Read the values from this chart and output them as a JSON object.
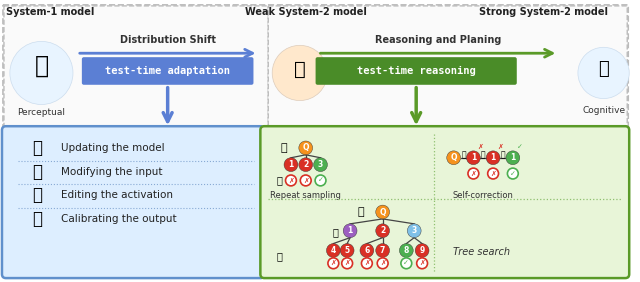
{
  "bg_color": "#ffffff",
  "title_sys1": "System-1 model",
  "title_weak": "Weak System-2 model",
  "title_strong": "Strong System-2 model",
  "label_perceptual": "Perceptual",
  "label_cognitive": "Cognitive",
  "arrow1_label": "Distribution Shift",
  "arrow2_label": "Reasoning and Planing",
  "box1_text": "test-time adaptation",
  "box2_text": "test-time reasoning",
  "box1_color": "#5b7fd4",
  "box2_color": "#4a8c28",
  "arrow1_color": "#5b7fd4",
  "arrow2_color": "#5a9a28",
  "down_arrow1_color": "#5b7fd4",
  "down_arrow2_color": "#5a9a28",
  "left_panel_bg": "#ddeeff",
  "left_panel_border": "#6090cc",
  "right_panel_bg": "#e8f5d8",
  "right_panel_border": "#5a9a28",
  "items_left": [
    "Updating the model",
    "Modifying the input",
    "Editing the activation",
    "Calibrating the output"
  ],
  "outer_border_color": "#bbbbbb",
  "node_orange": "#f5921e",
  "node_red": "#d93025",
  "node_green": "#4caf50",
  "node_purple": "#9c5fc0",
  "node_blue": "#7fc0e8",
  "label_repeat": "Repeat sampling",
  "label_self": "Self-correction",
  "label_tree": "Tree search",
  "dashed_divider": "#90c070",
  "top_area_bg": "#f8f8f8"
}
